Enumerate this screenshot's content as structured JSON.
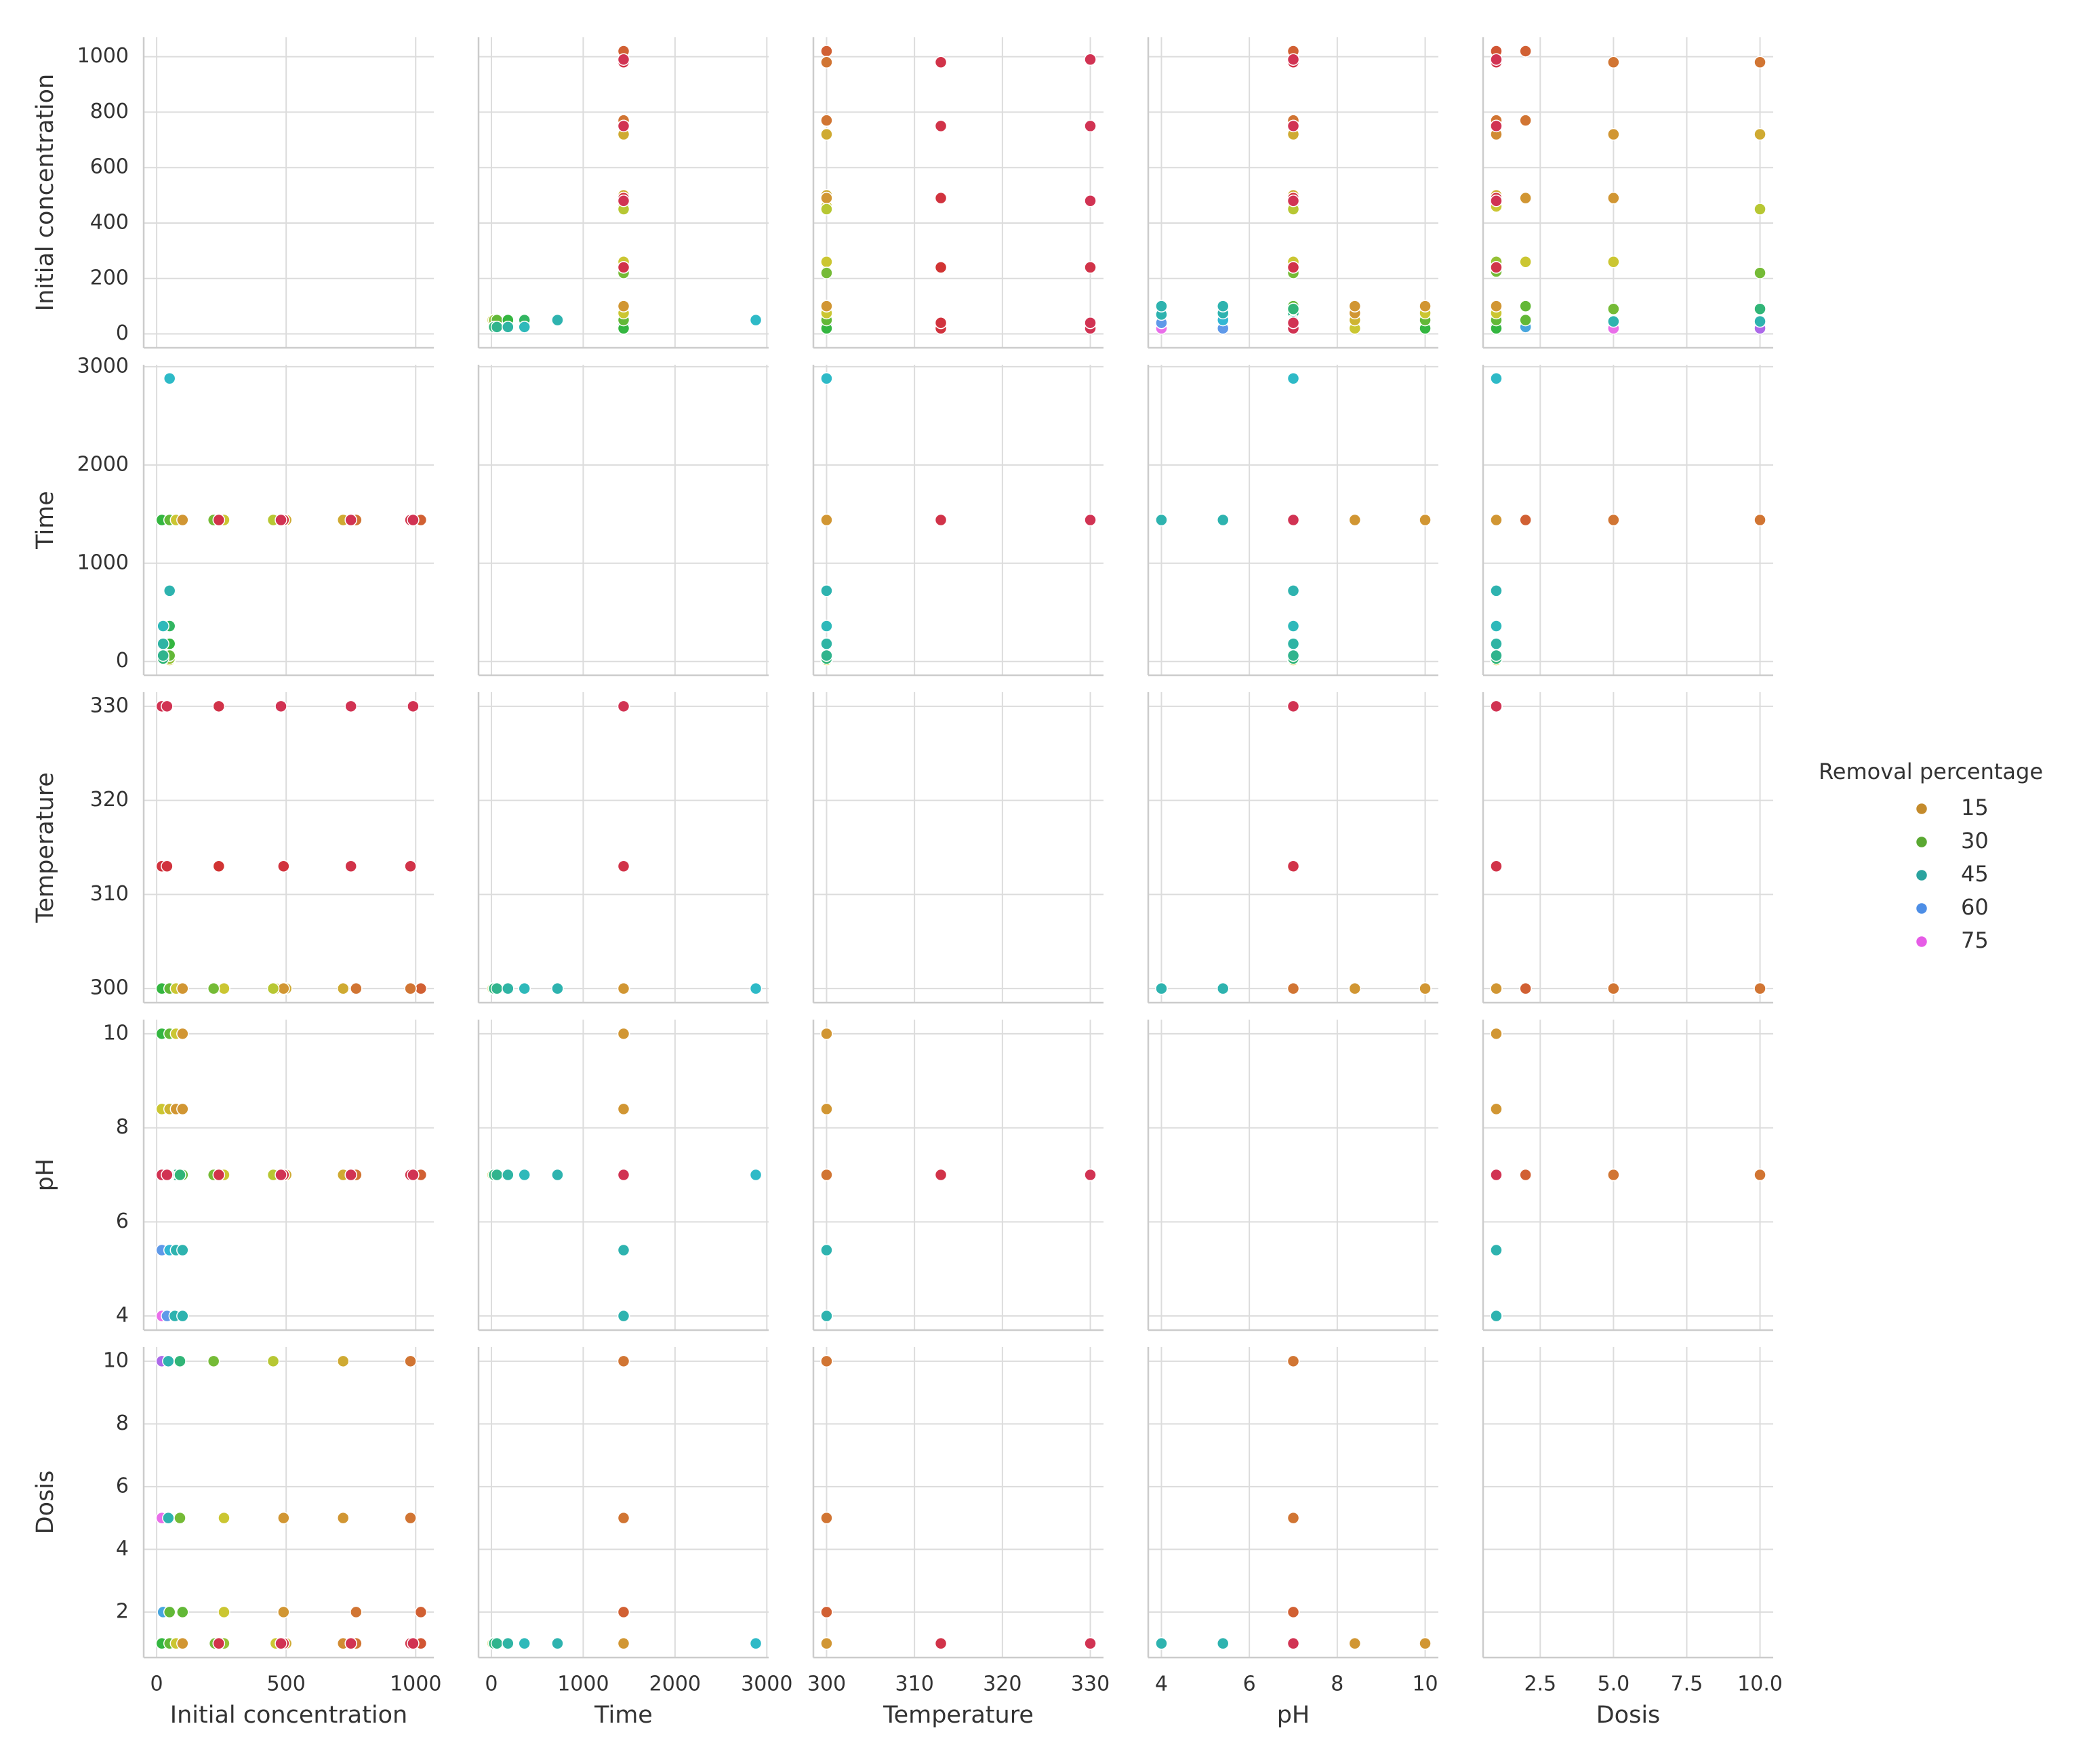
{
  "chart_data": {
    "type": "scatter",
    "grid": true,
    "legend": "right",
    "variables": [
      {
        "name": "Initial concentration",
        "lim": [
          -50,
          1070
        ],
        "xticks": [
          0,
          500,
          1000
        ],
        "yticks": [
          0,
          200,
          400,
          600,
          800,
          1000
        ],
        "values": [
          50,
          50,
          50,
          50,
          50,
          50,
          50,
          25,
          25,
          25,
          25,
          20,
          40,
          50,
          75,
          100,
          225,
          260,
          460,
          500,
          720,
          770,
          980,
          1020,
          25,
          50,
          100,
          260,
          490,
          770,
          1020,
          20,
          45,
          90,
          260,
          490,
          720,
          980,
          20,
          45,
          90,
          220,
          450,
          720,
          980,
          20,
          40,
          240,
          490,
          750,
          980,
          20,
          40,
          240,
          480,
          750,
          990,
          20,
          40,
          70,
          100,
          20,
          50,
          75,
          100,
          20,
          50,
          75,
          100,
          20,
          50,
          75,
          100
        ]
      },
      {
        "name": "Time",
        "lim": [
          -140,
          3020
        ],
        "xticks": [
          0,
          1000,
          2000,
          3000
        ],
        "yticks": [
          0,
          1000,
          2000,
          3000
        ],
        "values": [
          15,
          30,
          60,
          180,
          360,
          720,
          2880,
          30,
          60,
          180,
          360,
          1440,
          1440,
          1440,
          1440,
          1440,
          1440,
          1440,
          1440,
          1440,
          1440,
          1440,
          1440,
          1440,
          1440,
          1440,
          1440,
          1440,
          1440,
          1440,
          1440,
          1440,
          1440,
          1440,
          1440,
          1440,
          1440,
          1440,
          1440,
          1440,
          1440,
          1440,
          1440,
          1440,
          1440,
          1440,
          1440,
          1440,
          1440,
          1440,
          1440,
          1440,
          1440,
          1440,
          1440,
          1440,
          1440,
          1440,
          1440,
          1440,
          1440,
          1440,
          1440,
          1440,
          1440,
          1440,
          1440,
          1440,
          1440,
          1440,
          1440,
          1440,
          1440
        ]
      },
      {
        "name": "Temperature",
        "lim": [
          298.5,
          331.5
        ],
        "xticks": [
          300,
          310,
          320,
          330
        ],
        "yticks": [
          300,
          310,
          320,
          330
        ],
        "values": [
          300,
          300,
          300,
          300,
          300,
          300,
          300,
          300,
          300,
          300,
          300,
          300,
          300,
          300,
          300,
          300,
          300,
          300,
          300,
          300,
          300,
          300,
          300,
          300,
          300,
          300,
          300,
          300,
          300,
          300,
          300,
          300,
          300,
          300,
          300,
          300,
          300,
          300,
          300,
          300,
          300,
          300,
          300,
          300,
          300,
          313,
          313,
          313,
          313,
          313,
          313,
          330,
          330,
          330,
          330,
          330,
          330,
          300,
          300,
          300,
          300,
          300,
          300,
          300,
          300,
          300,
          300,
          300,
          300,
          300,
          300,
          300,
          300
        ]
      },
      {
        "name": "pH",
        "lim": [
          3.7,
          10.3
        ],
        "xticks": [
          4,
          6,
          8,
          10
        ],
        "yticks": [
          4,
          6,
          8,
          10
        ],
        "values": [
          7,
          7,
          7,
          7,
          7,
          7,
          7,
          7,
          7,
          7,
          7,
          7,
          7,
          7,
          7,
          7,
          7,
          7,
          7,
          7,
          7,
          7,
          7,
          7,
          7,
          7,
          7,
          7,
          7,
          7,
          7,
          7,
          7,
          7,
          7,
          7,
          7,
          7,
          7,
          7,
          7,
          7,
          7,
          7,
          7,
          7,
          7,
          7,
          7,
          7,
          7,
          7,
          7,
          7,
          7,
          7,
          7,
          4,
          4,
          4,
          4,
          5.4,
          5.4,
          5.4,
          5.4,
          8.4,
          8.4,
          8.4,
          8.4,
          10,
          10,
          10,
          10
        ]
      },
      {
        "name": "Dosis",
        "lim": [
          0.55,
          10.45
        ],
        "xticks": [
          2.5,
          {
            "value": 5,
            "label": "5.0"
          },
          7.5,
          {
            "value": 10,
            "label": "10.0"
          }
        ],
        "yticks": [
          2,
          4,
          6,
          8,
          10
        ],
        "values": [
          1,
          1,
          1,
          1,
          1,
          1,
          1,
          1,
          1,
          1,
          1,
          1,
          1,
          1,
          1,
          1,
          1,
          1,
          1,
          1,
          1,
          1,
          1,
          1,
          2,
          2,
          2,
          2,
          2,
          2,
          2,
          5,
          5,
          5,
          5,
          5,
          5,
          5,
          10,
          10,
          10,
          10,
          10,
          10,
          10,
          1,
          1,
          1,
          1,
          1,
          1,
          1,
          1,
          1,
          1,
          1,
          1,
          1,
          1,
          1,
          1,
          1,
          1,
          1,
          1,
          1,
          1,
          1,
          1,
          1,
          1,
          1,
          1
        ]
      }
    ],
    "hue": {
      "name": "Removal percentage",
      "legend": [
        15,
        30,
        45,
        60,
        75
      ],
      "colors": [
        "#c48b2c",
        "#5aa832",
        "#2aa39f",
        "#4d8ee6",
        "#e65ce6"
      ],
      "values": [
        20,
        25,
        30,
        35,
        38,
        45,
        48,
        40,
        42,
        44,
        46,
        75,
        60,
        50,
        42,
        35,
        28,
        25,
        20,
        17,
        14,
        12,
        10,
        9,
        55,
        30,
        30,
        20,
        15,
        12,
        10,
        75,
        45,
        28,
        20,
        15,
        15,
        12,
        70,
        45,
        40,
        28,
        22,
        17,
        12,
        5,
        5,
        6,
        5,
        4,
        4,
        3,
        3,
        4,
        3,
        3,
        3,
        75,
        60,
        45,
        45,
        60,
        50,
        45,
        45,
        20,
        18,
        15,
        15,
        35,
        30,
        20,
        15
      ]
    }
  }
}
